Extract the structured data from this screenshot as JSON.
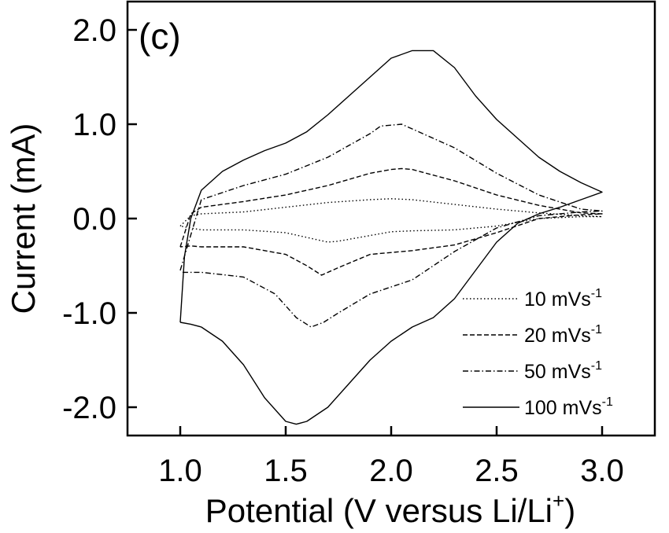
{
  "chart_data": {
    "type": "line",
    "panel_label": "(c)",
    "xlabel": "Potential (V versus Li/Li",
    "xlabel_superscript": "+",
    "xlabel_close": ")",
    "ylabel": "Current (mA)",
    "xlim": [
      0.75,
      3.25
    ],
    "ylim": [
      -2.3,
      2.3
    ],
    "x_ticks": [
      1.0,
      1.5,
      2.0,
      2.5,
      3.0
    ],
    "x_tick_labels": [
      "1.0",
      "1.5",
      "2.0",
      "2.5",
      "3.0"
    ],
    "y_ticks": [
      -2.0,
      -1.0,
      0.0,
      1.0,
      2.0
    ],
    "y_tick_labels": [
      "-2.0",
      "-1.0",
      "0.0",
      "1.0",
      "2.0"
    ],
    "grid": false,
    "legend_position": "bottom-right",
    "series": [
      {
        "name": "10 mVs",
        "name_superscript": "-1",
        "style": "dotted",
        "x": [
          1.0,
          1.05,
          1.1,
          1.3,
          1.5,
          1.7,
          1.9,
          2.0,
          2.1,
          2.3,
          2.5,
          2.7,
          2.9,
          3.0,
          2.9,
          2.7,
          2.5,
          2.3,
          2.1,
          2.0,
          1.85,
          1.75,
          1.7,
          1.6,
          1.5,
          1.3,
          1.1,
          1.05,
          1.0
        ],
        "y": [
          -0.08,
          0.03,
          0.05,
          0.07,
          0.12,
          0.17,
          0.2,
          0.21,
          0.2,
          0.15,
          0.1,
          0.06,
          0.03,
          0.02,
          0.02,
          0.0,
          -0.08,
          -0.12,
          -0.13,
          -0.14,
          -0.2,
          -0.24,
          -0.25,
          -0.2,
          -0.15,
          -0.12,
          -0.12,
          -0.1,
          -0.08
        ]
      },
      {
        "name": "20 mVs",
        "name_superscript": "-1",
        "style": "dashed",
        "x": [
          1.0,
          1.05,
          1.1,
          1.3,
          1.5,
          1.7,
          1.9,
          2.0,
          2.05,
          2.1,
          2.3,
          2.5,
          2.7,
          2.9,
          3.0,
          2.9,
          2.7,
          2.5,
          2.3,
          2.1,
          1.9,
          1.75,
          1.67,
          1.6,
          1.5,
          1.3,
          1.1,
          1.05,
          1.0
        ],
        "y": [
          -0.3,
          0.05,
          0.12,
          0.18,
          0.25,
          0.35,
          0.48,
          0.52,
          0.53,
          0.52,
          0.4,
          0.25,
          0.14,
          0.06,
          0.05,
          0.04,
          0.0,
          -0.15,
          -0.28,
          -0.34,
          -0.38,
          -0.52,
          -0.6,
          -0.5,
          -0.38,
          -0.3,
          -0.3,
          -0.29,
          -0.3
        ]
      },
      {
        "name": "50 mVs",
        "name_superscript": "-1",
        "style": "dash-dot",
        "x": [
          1.0,
          1.1,
          1.3,
          1.5,
          1.7,
          1.9,
          1.95,
          2.05,
          2.1,
          2.3,
          2.5,
          2.7,
          2.9,
          3.0,
          2.9,
          2.7,
          2.5,
          2.3,
          2.1,
          1.9,
          1.75,
          1.68,
          1.62,
          1.55,
          1.45,
          1.3,
          1.1,
          1.05,
          1.0
        ],
        "y": [
          -0.55,
          0.2,
          0.35,
          0.47,
          0.65,
          0.9,
          0.98,
          1.0,
          0.95,
          0.75,
          0.48,
          0.25,
          0.1,
          0.08,
          0.07,
          0.03,
          -0.1,
          -0.35,
          -0.65,
          -0.8,
          -1.0,
          -1.1,
          -1.15,
          -1.05,
          -0.8,
          -0.62,
          -0.57,
          -0.57,
          -0.57
        ]
      },
      {
        "name": "100 mVs",
        "name_superscript": "-1",
        "style": "solid",
        "x": [
          1.0,
          1.02,
          1.05,
          1.1,
          1.2,
          1.3,
          1.4,
          1.5,
          1.6,
          1.7,
          1.8,
          1.9,
          2.0,
          2.1,
          2.2,
          2.3,
          2.4,
          2.5,
          2.6,
          2.7,
          2.8,
          2.9,
          3.0,
          2.9,
          2.8,
          2.7,
          2.6,
          2.5,
          2.4,
          2.3,
          2.2,
          2.1,
          2.0,
          1.9,
          1.8,
          1.7,
          1.6,
          1.55,
          1.5,
          1.4,
          1.3,
          1.2,
          1.1,
          1.05,
          1.0
        ],
        "y": [
          -1.1,
          -0.4,
          0.0,
          0.3,
          0.5,
          0.62,
          0.72,
          0.8,
          0.92,
          1.1,
          1.3,
          1.5,
          1.7,
          1.78,
          1.78,
          1.6,
          1.3,
          1.05,
          0.85,
          0.65,
          0.5,
          0.38,
          0.28,
          0.2,
          0.12,
          0.05,
          -0.05,
          -0.25,
          -0.55,
          -0.85,
          -1.05,
          -1.15,
          -1.3,
          -1.5,
          -1.75,
          -2.0,
          -2.15,
          -2.18,
          -2.15,
          -1.9,
          -1.55,
          -1.3,
          -1.15,
          -1.12,
          -1.1
        ]
      }
    ]
  }
}
